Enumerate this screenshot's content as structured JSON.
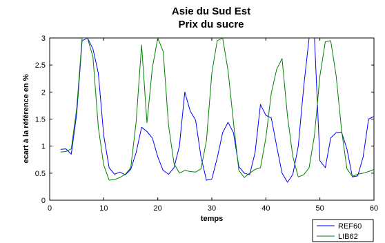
{
  "chart_data": {
    "type": "line",
    "title": "Asie du Sud Est",
    "subtitle": "Prix du sucre",
    "xlabel": "temps",
    "ylabel": "ecart à la référence en %",
    "xlim": [
      0,
      60
    ],
    "ylim": [
      0,
      3
    ],
    "xticks": [
      0,
      10,
      20,
      30,
      40,
      50,
      60
    ],
    "yticks": [
      0,
      0.5,
      1,
      1.5,
      2,
      2.5,
      3
    ],
    "ytick_labels": [
      "0",
      "0.5",
      "1",
      "1.5",
      "2",
      "2.5",
      "3"
    ],
    "grid": false,
    "legend_position": "below-right",
    "series": [
      {
        "name": "REF60",
        "color": "#0000ff",
        "x": [
          2,
          3,
          4,
          5,
          6,
          7,
          8,
          9,
          10,
          11,
          12,
          13,
          14,
          15,
          16,
          17,
          18,
          19,
          20,
          21,
          22,
          23,
          24,
          25,
          26,
          27,
          28,
          29,
          30,
          31,
          32,
          33,
          34,
          35,
          36,
          37,
          38,
          39,
          40,
          41,
          42,
          43,
          44,
          45,
          46,
          47,
          48,
          49,
          50,
          51,
          52,
          53,
          54,
          55,
          56,
          57,
          58,
          59,
          60
        ],
        "values": [
          0.94,
          0.95,
          0.85,
          1.6,
          2.95,
          3.0,
          2.8,
          2.35,
          1.2,
          0.6,
          0.48,
          0.52,
          0.47,
          0.57,
          0.88,
          1.35,
          1.27,
          1.15,
          0.8,
          0.55,
          0.48,
          0.6,
          1.0,
          2.0,
          1.65,
          1.48,
          0.8,
          0.37,
          0.39,
          0.78,
          1.25,
          1.44,
          1.25,
          0.62,
          0.5,
          0.47,
          0.88,
          1.77,
          1.57,
          1.52,
          1.0,
          0.5,
          0.33,
          0.48,
          1.0,
          2.1,
          3.0,
          3.0,
          0.73,
          0.6,
          1.15,
          1.25,
          1.26,
          0.95,
          0.43,
          0.45,
          0.8,
          1.5,
          1.55
        ]
      },
      {
        "name": "LIB62",
        "color": "#008000",
        "x": [
          2,
          3,
          4,
          5,
          6,
          7,
          8,
          9,
          10,
          11,
          12,
          13,
          14,
          15,
          16,
          17,
          18,
          19,
          20,
          21,
          22,
          23,
          24,
          25,
          26,
          27,
          28,
          29,
          30,
          31,
          32,
          33,
          34,
          35,
          36,
          37,
          38,
          39,
          40,
          41,
          42,
          43,
          44,
          45,
          46,
          47,
          48,
          49,
          50,
          51,
          52,
          53,
          54,
          55,
          56,
          57,
          58,
          59,
          60
        ],
        "values": [
          0.89,
          0.9,
          0.95,
          1.7,
          3.0,
          3.0,
          2.65,
          1.35,
          0.65,
          0.37,
          0.38,
          0.42,
          0.48,
          0.6,
          1.45,
          2.87,
          1.43,
          2.45,
          3.0,
          2.75,
          1.38,
          0.68,
          0.5,
          0.55,
          0.53,
          0.52,
          0.58,
          1.1,
          2.35,
          2.95,
          3.0,
          2.4,
          1.45,
          0.55,
          0.42,
          0.5,
          0.57,
          0.6,
          1.15,
          1.98,
          2.42,
          2.62,
          1.55,
          0.8,
          0.43,
          0.47,
          0.6,
          1.2,
          2.3,
          2.93,
          2.95,
          2.3,
          1.3,
          0.58,
          0.44,
          0.48,
          0.5,
          0.53,
          0.57
        ]
      }
    ]
  }
}
